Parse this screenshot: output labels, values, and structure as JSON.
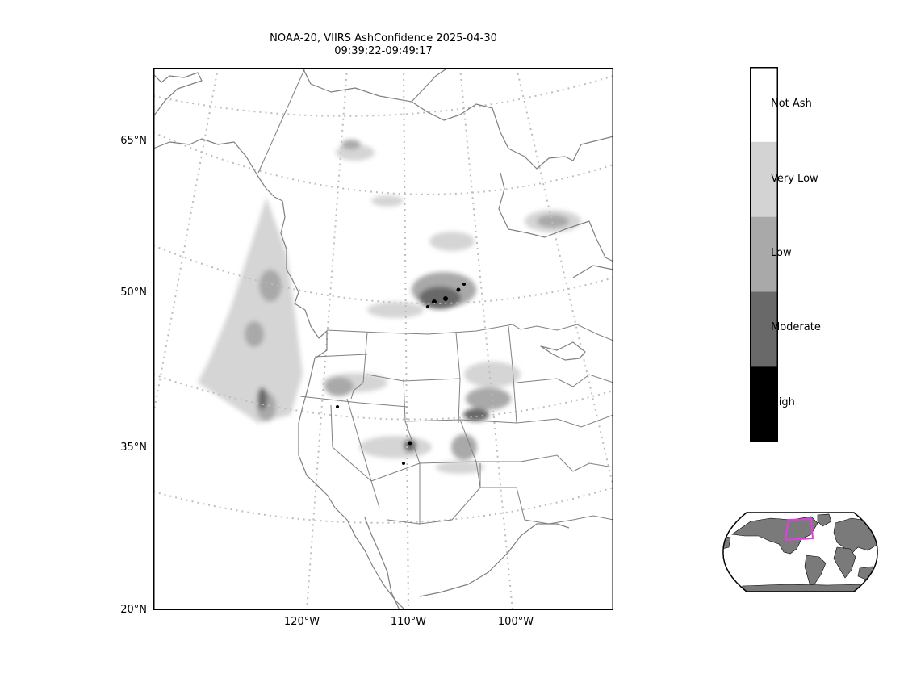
{
  "title": {
    "line1": "NOAA-20, VIIRS AshConfidence 2025-04-30",
    "line2": "09:39:22-09:49:17"
  },
  "map": {
    "projection": "lambert-conformal",
    "gridline_style": "dotted",
    "lat_labels": [
      "65°N",
      "50°N",
      "35°N",
      "20°N"
    ],
    "lon_labels": [
      "120°W",
      "110°W",
      "100°W"
    ],
    "colors": {
      "coastline": "#808080",
      "state_borders": "#808080",
      "gridlines": "#bdbdbd",
      "frame": "#000000"
    }
  },
  "colorbar": {
    "categories": [
      {
        "label": "Not Ash",
        "color": "#ffffff"
      },
      {
        "label": "Very Low",
        "color": "#d3d3d3"
      },
      {
        "label": "Low",
        "color": "#a9a9a9"
      },
      {
        "label": "Moderate",
        "color": "#696969"
      },
      {
        "label": "High",
        "color": "#000000"
      }
    ]
  },
  "inset": {
    "type": "global-locator",
    "land_color": "#7a7a7a",
    "highlight_color": "#e040e0"
  }
}
